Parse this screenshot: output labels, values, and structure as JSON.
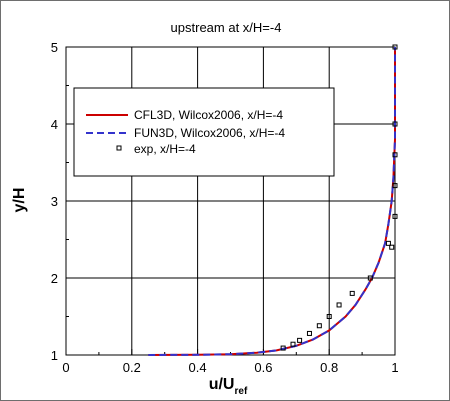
{
  "chart_data": {
    "type": "line",
    "title": "upstream at x/H=-4",
    "xlabel": "u/U",
    "xlabel_subscript": "ref",
    "ylabel": "y/H",
    "xlim": [
      0,
      1
    ],
    "ylim": [
      1,
      5
    ],
    "xticks": [
      "0",
      "0.2",
      "0.4",
      "0.6",
      "0.8",
      "1"
    ],
    "yticks": [
      "1",
      "2",
      "3",
      "4",
      "5"
    ],
    "grid": true,
    "legend_position": "upper-left",
    "series": [
      {
        "name": "CFL3D, Wilcox2006, x/H=-4",
        "style": "solid",
        "color": "#cc0000",
        "x": [
          0.25,
          0.4,
          0.5,
          0.58,
          0.64,
          0.7,
          0.75,
          0.8,
          0.85,
          0.88,
          0.91,
          0.93,
          0.95,
          0.97,
          0.98,
          0.99,
          0.995,
          1.0,
          1.0
        ],
        "y": [
          1.0,
          1.003,
          1.01,
          1.03,
          1.06,
          1.12,
          1.2,
          1.32,
          1.5,
          1.65,
          1.85,
          2.0,
          2.2,
          2.45,
          2.7,
          3.0,
          3.3,
          3.8,
          5.0
        ]
      },
      {
        "name": "FUN3D, Wilcox2006, x/H=-4",
        "style": "dashed",
        "color": "#3333cc",
        "x": [
          0.25,
          0.4,
          0.5,
          0.58,
          0.64,
          0.7,
          0.75,
          0.8,
          0.85,
          0.88,
          0.91,
          0.93,
          0.95,
          0.97,
          0.98,
          0.99,
          0.995,
          1.0,
          1.0
        ],
        "y": [
          1.0,
          1.003,
          1.01,
          1.03,
          1.06,
          1.12,
          1.2,
          1.32,
          1.5,
          1.65,
          1.85,
          2.0,
          2.2,
          2.45,
          2.7,
          3.0,
          3.3,
          3.8,
          5.0
        ]
      },
      {
        "name": "exp, x/H=-4",
        "style": "markers",
        "color": "#000000",
        "x": [
          0.66,
          0.69,
          0.71,
          0.74,
          0.77,
          0.8,
          0.83,
          0.87,
          0.925,
          0.98,
          0.99,
          1.0,
          1.0,
          1.0,
          1.0,
          1.0
        ],
        "y": [
          1.09,
          1.14,
          1.19,
          1.28,
          1.38,
          1.5,
          1.65,
          1.8,
          2.0,
          2.45,
          2.4,
          2.8,
          3.2,
          3.6,
          4.0,
          5.0
        ]
      }
    ]
  }
}
